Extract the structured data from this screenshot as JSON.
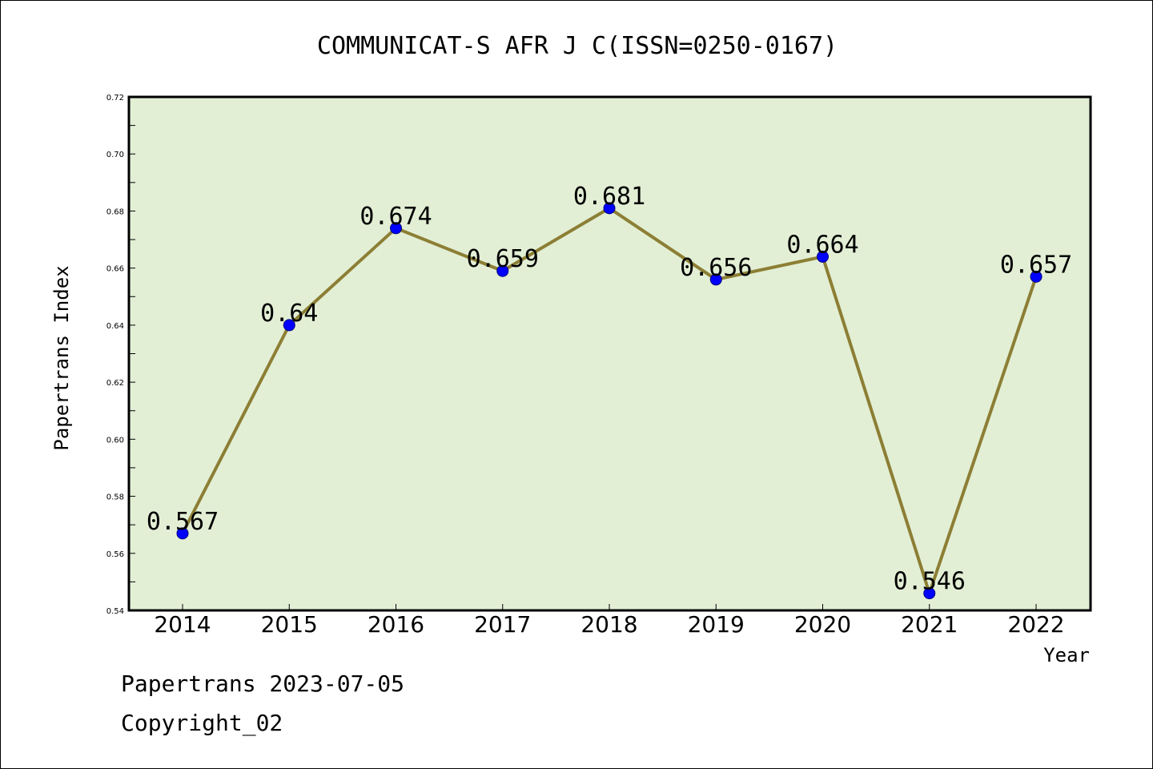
{
  "chart_data": {
    "type": "line",
    "title": "COMMUNICAT-S AFR J C(ISSN=0250-0167)",
    "xlabel": "Year",
    "ylabel": "Papertrans Index",
    "categories": [
      "2014",
      "2015",
      "2016",
      "2017",
      "2018",
      "2019",
      "2020",
      "2021",
      "2022"
    ],
    "values": [
      0.567,
      0.64,
      0.674,
      0.659,
      0.681,
      0.656,
      0.664,
      0.546,
      0.657
    ],
    "data_labels": [
      "0.567",
      "0.64",
      "0.674",
      "0.659",
      "0.681",
      "0.656",
      "0.664",
      "0.546",
      "0.657"
    ],
    "ylim": [
      0.54,
      0.72
    ],
    "yticks": [
      "0.54",
      "0.56",
      "0.58",
      "0.60",
      "0.62",
      "0.64",
      "0.66",
      "0.68",
      "0.70",
      "0.72"
    ],
    "grid": false,
    "colors": {
      "plot_background": "#e2efd5",
      "line": "#8c7e34",
      "marker": "#0000ff"
    }
  },
  "footer": {
    "date_line": "Papertrans 2023-07-05",
    "copyright": "Copyright_02"
  }
}
